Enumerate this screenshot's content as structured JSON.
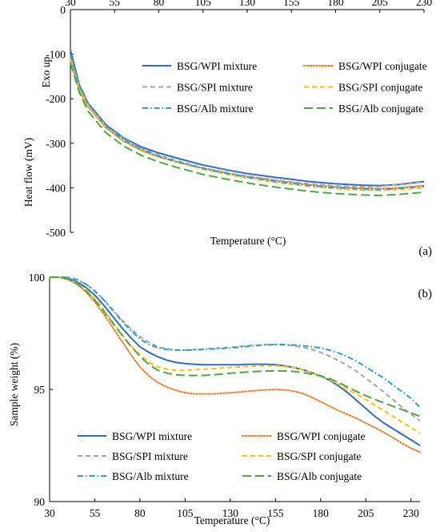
{
  "chart_data": [
    {
      "type": "line",
      "panel_label": "(a)",
      "title": "",
      "xlabel": "Temperature (°C)",
      "ylabel": "Heat flow (mV)",
      "y_annotation": "Exo up",
      "xlim": [
        30,
        230
      ],
      "ylim": [
        -500,
        0
      ],
      "x_ticks": [
        "30",
        "55",
        "80",
        "105",
        "130",
        "155",
        "180",
        "205",
        "230"
      ],
      "y_ticks": [
        "0",
        "-100",
        "-200",
        "-300",
        "-400",
        "-500"
      ],
      "x_axis_position": "top",
      "grid": false,
      "legend_position": "top-right",
      "x": [
        30,
        35,
        40,
        50,
        60,
        70,
        80,
        90,
        105,
        120,
        130,
        145,
        155,
        165,
        180,
        195,
        205,
        215,
        230
      ],
      "series": [
        {
          "name": "BSG/WPI mixture",
          "color": "#2e6fc5",
          "dash": "solid",
          "values": [
            -90,
            -168,
            -210,
            -258,
            -288,
            -308,
            -322,
            -333,
            -349,
            -361,
            -368,
            -376,
            -381,
            -386,
            -391,
            -394,
            -395,
            -393,
            -386
          ]
        },
        {
          "name": "BSG/WPI conjugate",
          "color": "#f07d2a",
          "dash": "dotted",
          "values": [
            -115,
            -180,
            -218,
            -265,
            -295,
            -316,
            -331,
            -342,
            -356,
            -368,
            -375,
            -383,
            -388,
            -393,
            -398,
            -401,
            -402,
            -400,
            -395
          ]
        },
        {
          "name": "BSG/SPI mixture",
          "color": "#a6a6a6",
          "dash": "dashed",
          "values": [
            -105,
            -172,
            -212,
            -260,
            -290,
            -311,
            -327,
            -339,
            -355,
            -367,
            -374,
            -382,
            -387,
            -391,
            -396,
            -398,
            -397,
            -392,
            -385
          ]
        },
        {
          "name": "BSG/SPI conjugate",
          "color": "#ffc000",
          "dash": "dashed",
          "values": [
            -110,
            -176,
            -215,
            -263,
            -293,
            -314,
            -330,
            -342,
            -358,
            -371,
            -378,
            -387,
            -392,
            -397,
            -402,
            -405,
            -406,
            -404,
            -400
          ]
        },
        {
          "name": "BSG/Alb mixture",
          "color": "#2aa0d8",
          "dash": "dashdot",
          "values": [
            -100,
            -170,
            -211,
            -261,
            -292,
            -313,
            -329,
            -341,
            -357,
            -369,
            -376,
            -385,
            -390,
            -395,
            -400,
            -403,
            -404,
            -402,
            -397
          ]
        },
        {
          "name": "BSG/Alb conjugate",
          "color": "#4aaa42",
          "dash": "longdash",
          "values": [
            -120,
            -185,
            -228,
            -276,
            -306,
            -327,
            -342,
            -354,
            -370,
            -382,
            -389,
            -398,
            -403,
            -408,
            -413,
            -416,
            -417,
            -415,
            -410
          ]
        }
      ]
    },
    {
      "type": "line",
      "panel_label": "(b)",
      "title": "",
      "xlabel": "Temperature (°C)",
      "ylabel": "Sample weight (%)",
      "xlim": [
        30,
        235
      ],
      "ylim": [
        90,
        100
      ],
      "x_ticks": [
        "30",
        "55",
        "80",
        "105",
        "130",
        "155",
        "180",
        "205",
        "230"
      ],
      "y_ticks": [
        "100",
        "95",
        "90"
      ],
      "x_axis_position": "bottom",
      "grid": false,
      "legend_position": "bottom",
      "x": [
        30,
        35,
        40,
        45,
        50,
        55,
        60,
        65,
        70,
        75,
        80,
        85,
        90,
        95,
        100,
        105,
        110,
        115,
        120,
        125,
        130,
        135,
        140,
        145,
        150,
        155,
        160,
        165,
        170,
        175,
        180,
        185,
        190,
        195,
        200,
        205,
        210,
        215,
        220,
        225,
        230,
        235
      ],
      "series": [
        {
          "name": "BSG/WPI mixture",
          "color": "#2e6fc5",
          "dash": "solid",
          "values": [
            100,
            100,
            99.95,
            99.8,
            99.55,
            99.2,
            98.75,
            98.25,
            97.75,
            97.3,
            96.9,
            96.65,
            96.45,
            96.3,
            96.2,
            96.15,
            96.12,
            96.1,
            96.1,
            96.1,
            96.1,
            96.1,
            96.12,
            96.12,
            96.12,
            96.1,
            96.05,
            95.98,
            95.88,
            95.75,
            95.6,
            95.4,
            95.15,
            94.85,
            94.5,
            94.15,
            93.8,
            93.5,
            93.25,
            93.0,
            92.75,
            92.5
          ]
        },
        {
          "name": "BSG/WPI conjugate",
          "color": "#f07d2a",
          "dash": "dotted",
          "values": [
            100,
            100,
            99.9,
            99.7,
            99.35,
            98.9,
            98.35,
            97.75,
            97.15,
            96.55,
            96.0,
            95.6,
            95.3,
            95.1,
            94.95,
            94.85,
            94.8,
            94.8,
            94.8,
            94.82,
            94.85,
            94.88,
            94.92,
            94.95,
            94.98,
            95.0,
            94.98,
            94.92,
            94.82,
            94.65,
            94.45,
            94.25,
            94.05,
            93.88,
            93.7,
            93.5,
            93.3,
            93.08,
            92.85,
            92.6,
            92.38,
            92.2
          ]
        },
        {
          "name": "BSG/SPI mixture",
          "color": "#a6a6a6",
          "dash": "dashed",
          "values": [
            100,
            100,
            100,
            99.9,
            99.7,
            99.4,
            99.0,
            98.55,
            98.1,
            97.7,
            97.35,
            97.1,
            96.9,
            96.8,
            96.75,
            96.75,
            96.78,
            96.8,
            96.82,
            96.85,
            96.88,
            96.92,
            96.95,
            96.98,
            97.0,
            97.0,
            96.98,
            96.95,
            96.88,
            96.78,
            96.65,
            96.48,
            96.28,
            96.05,
            95.8,
            95.5,
            95.2,
            94.88,
            94.55,
            94.2,
            93.9,
            93.6
          ]
        },
        {
          "name": "BSG/SPI conjugate",
          "color": "#ffc000",
          "dash": "dashed",
          "values": [
            100,
            100,
            99.92,
            99.75,
            99.45,
            99.05,
            98.55,
            98.0,
            97.45,
            96.95,
            96.55,
            96.2,
            96.0,
            95.9,
            95.85,
            95.85,
            95.88,
            95.9,
            95.92,
            95.95,
            95.98,
            96.0,
            96.02,
            96.05,
            96.05,
            96.05,
            96.02,
            95.98,
            95.88,
            95.75,
            95.6,
            95.42,
            95.22,
            95.0,
            94.78,
            94.55,
            94.3,
            94.05,
            93.8,
            93.55,
            93.3,
            93.05
          ]
        },
        {
          "name": "BSG/Alb mixture",
          "color": "#2aa0d8",
          "dash": "dashdot",
          "values": [
            100,
            100,
            100,
            99.9,
            99.7,
            99.38,
            98.98,
            98.52,
            98.05,
            97.62,
            97.25,
            97.0,
            96.85,
            96.78,
            96.75,
            96.75,
            96.75,
            96.78,
            96.8,
            96.82,
            96.85,
            96.88,
            96.92,
            96.95,
            96.98,
            97.0,
            97.0,
            96.98,
            96.95,
            96.9,
            96.85,
            96.75,
            96.62,
            96.45,
            96.25,
            96.0,
            95.75,
            95.5,
            95.2,
            94.9,
            94.6,
            94.2
          ]
        },
        {
          "name": "BSG/Alb conjugate",
          "color": "#4aaa42",
          "dash": "longdash",
          "values": [
            100,
            100,
            99.92,
            99.72,
            99.4,
            98.98,
            98.48,
            97.95,
            97.42,
            96.92,
            96.48,
            96.1,
            95.85,
            95.72,
            95.65,
            95.62,
            95.62,
            95.62,
            95.65,
            95.68,
            95.72,
            95.75,
            95.78,
            95.8,
            95.82,
            95.82,
            95.82,
            95.8,
            95.75,
            95.68,
            95.6,
            95.48,
            95.3,
            95.1,
            94.9,
            94.72,
            94.55,
            94.4,
            94.25,
            94.1,
            93.95,
            93.8
          ]
        }
      ]
    }
  ]
}
